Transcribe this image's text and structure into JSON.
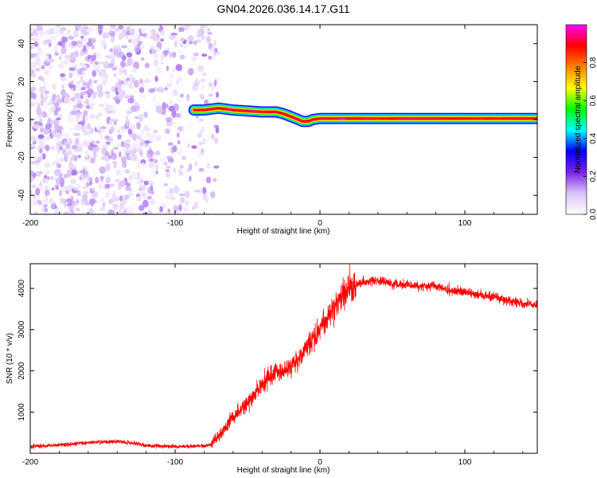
{
  "title": "GN04.2026.036.14.17.G11",
  "chart_data": [
    {
      "type": "heatmap",
      "xlabel": "Height of straight line (km)",
      "ylabel": "Frequency (Hz)",
      "xlim": [
        -200,
        150
      ],
      "ylim": [
        -50,
        50
      ],
      "xticks": [
        -200,
        -100,
        0,
        100
      ],
      "yticks": [
        -40,
        -20,
        0,
        20,
        40
      ],
      "grid": false,
      "colorbar": {
        "label": "Normalized spectral amplitude",
        "range": [
          0.0,
          1.0
        ],
        "ticks": [
          0.0,
          0.2,
          0.4,
          0.6,
          0.8
        ],
        "tick_labels": [
          "0.0",
          "0.2",
          "0.4",
          "0.6",
          "0.8"
        ],
        "colormap": [
          "#ffffff",
          "#d9c2f5",
          "#7a22e6",
          "#0000ff",
          "#00ffff",
          "#00ff00",
          "#ffff00",
          "#ff8000",
          "#ff0000",
          "#ff00ff"
        ]
      },
      "noise_region": {
        "x_range": [
          -200,
          -70
        ],
        "freq_range": [
          -50,
          50
        ],
        "amplitude": [
          0.0,
          0.15
        ]
      },
      "carrier_track": {
        "x": [
          -87,
          -80,
          -70,
          -60,
          -50,
          -40,
          -30,
          -25,
          -20,
          -15,
          -12,
          -8,
          -5,
          0,
          20,
          50,
          80,
          110,
          130,
          150
        ],
        "freq": [
          5,
          5,
          6,
          5,
          4.5,
          4,
          4,
          3,
          1.5,
          0,
          -1,
          -1,
          0,
          0.5,
          0.5,
          0.5,
          0.5,
          0.5,
          0.5,
          0.5
        ],
        "peak_amplitude": 1.0
      }
    },
    {
      "type": "line",
      "xlabel": "Height of straight line (km)",
      "ylabel": "SNR (10 * v/v)",
      "xlim": [
        -200,
        150
      ],
      "ylim": [
        0,
        4600
      ],
      "xticks": [
        -200,
        -100,
        0,
        100
      ],
      "yticks": [
        1000,
        2000,
        3000,
        4000
      ],
      "grid": false,
      "series": [
        {
          "color": "#ff0000",
          "x": [
            -200,
            -190,
            -180,
            -170,
            -160,
            -150,
            -140,
            -130,
            -120,
            -110,
            -100,
            -90,
            -80,
            -75,
            -70,
            -65,
            -60,
            -55,
            -50,
            -45,
            -40,
            -35,
            -30,
            -25,
            -20,
            -15,
            -10,
            -5,
            0,
            5,
            10,
            15,
            20,
            25,
            30,
            35,
            40,
            45,
            50,
            60,
            70,
            80,
            90,
            100,
            110,
            120,
            130,
            140,
            150
          ],
          "y": [
            170,
            180,
            200,
            230,
            260,
            280,
            290,
            250,
            190,
            170,
            165,
            165,
            180,
            220,
            400,
            650,
            900,
            1050,
            1200,
            1450,
            1650,
            1850,
            1950,
            2000,
            2150,
            2300,
            2550,
            2800,
            3050,
            3300,
            3550,
            3800,
            4000,
            4100,
            4150,
            4180,
            4200,
            4150,
            4100,
            4100,
            4050,
            4050,
            3950,
            3900,
            3850,
            3800,
            3700,
            3650,
            3600
          ]
        }
      ]
    }
  ]
}
